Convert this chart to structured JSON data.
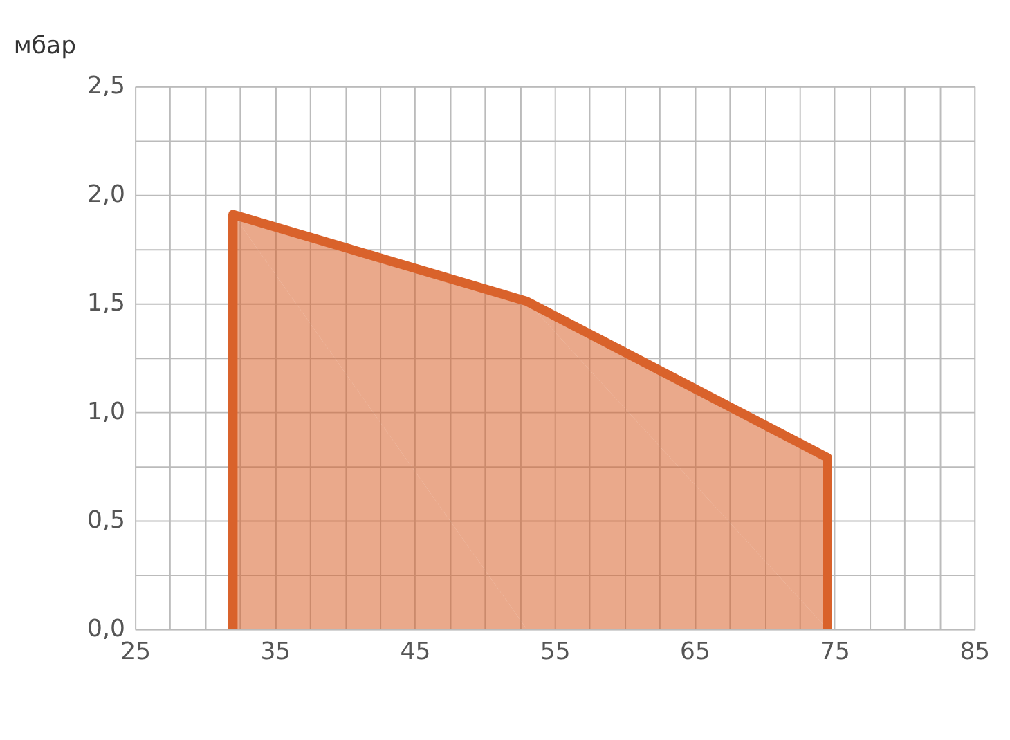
{
  "chart_data": {
    "type": "area",
    "ylabel": "мбар",
    "x": [
      32,
      32,
      53,
      74.5,
      74.5
    ],
    "series": [
      {
        "color": "#d9622b",
        "values": [
          0,
          1.91,
          1.51,
          0.79,
          0
        ]
      }
    ],
    "xlim": [
      25,
      85
    ],
    "xticks": [
      25,
      {
        "value": 27.5,
        "label": null
      },
      {
        "value": 30,
        "label": null
      },
      {
        "value": 32.5,
        "label": null
      },
      35,
      {
        "value": 37.5,
        "label": null
      },
      {
        "value": 40,
        "label": null
      },
      {
        "value": 42.5,
        "label": null
      },
      45,
      {
        "value": 47.5,
        "label": null
      },
      {
        "value": 50,
        "label": null
      },
      {
        "value": 52.5,
        "label": null
      },
      55,
      {
        "value": 57.5,
        "label": null
      },
      {
        "value": 60,
        "label": null
      },
      {
        "value": 62.5,
        "label": null
      },
      65,
      {
        "value": 67.5,
        "label": null
      },
      {
        "value": 70,
        "label": null
      },
      {
        "value": 72.5,
        "label": null
      },
      75,
      {
        "value": 77.5,
        "label": null
      },
      {
        "value": 80,
        "label": null
      },
      {
        "value": 82.5,
        "label": null
      },
      85
    ],
    "ylim": [
      0,
      2.5
    ],
    "yticks": [
      {
        "value": 0,
        "label": "0,0"
      },
      {
        "value": 0.25,
        "label": null
      },
      {
        "value": 0.5,
        "label": "0,5"
      },
      {
        "value": 0.75,
        "label": null
      },
      {
        "value": 1,
        "label": "1,0"
      },
      {
        "value": 1.25,
        "label": null
      },
      {
        "value": 1.5,
        "label": "1,5"
      },
      {
        "value": 1.75,
        "label": null
      },
      {
        "value": 2,
        "label": "2,0"
      },
      {
        "value": 2.25,
        "label": null
      },
      {
        "value": 2.5,
        "label": "2,5"
      }
    ],
    "grid": true
  }
}
